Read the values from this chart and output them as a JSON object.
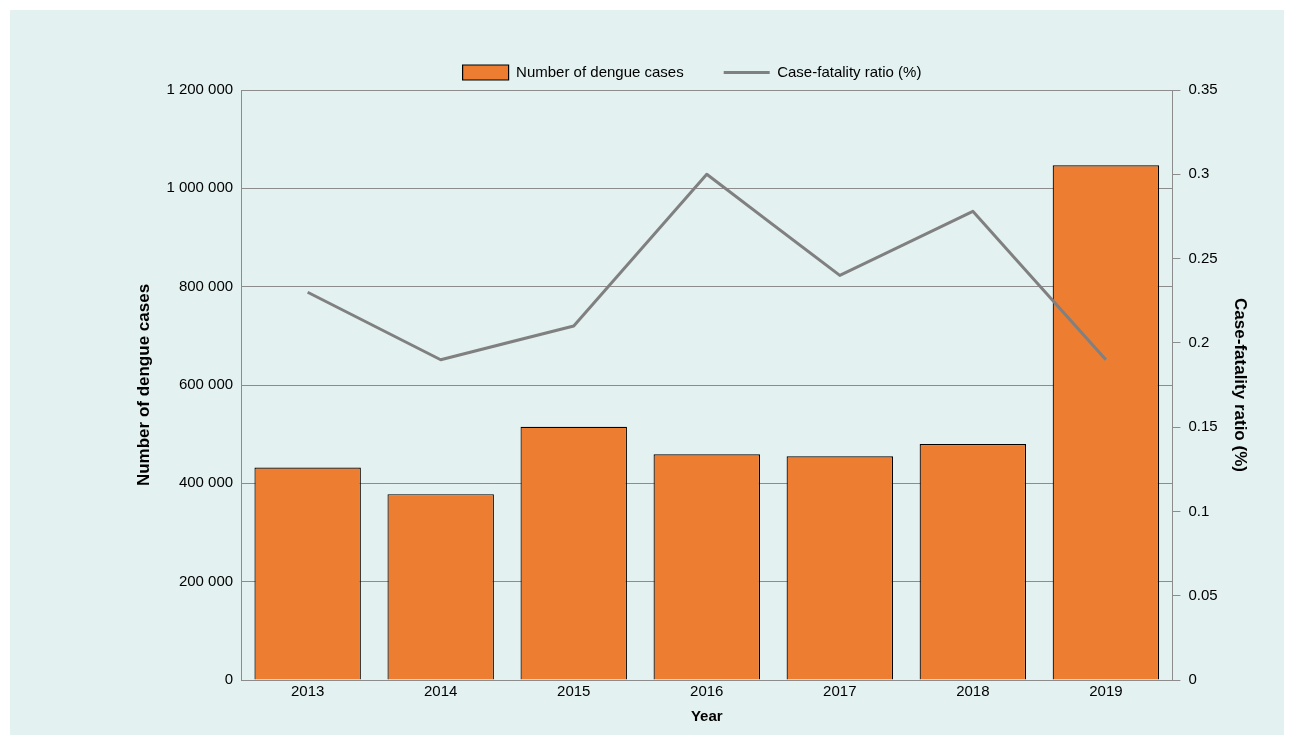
{
  "chart_data": {
    "type": "bar",
    "xlabel": "Year",
    "ylabel": "Number of dengue cases",
    "y2label": "Case-fatality ratio (%)",
    "categories": [
      "2013",
      "2014",
      "2015",
      "2016",
      "2017",
      "2018",
      "2019"
    ],
    "series": [
      {
        "name": "Number of dengue cases",
        "color": "#ed7d31",
        "values": [
          432000,
          378000,
          515000,
          459000,
          455000,
          480000,
          1047000
        ]
      },
      {
        "name": "Case-fatality ratio (%)",
        "type": "line",
        "axis": "y2",
        "color": "#808080",
        "marker": "none",
        "values": [
          0.23,
          0.19,
          0.21,
          0.3,
          0.24,
          0.278,
          0.19
        ]
      }
    ],
    "ylim": [
      0,
      1200000
    ],
    "yticks": [
      {
        "value": 0,
        "label": "0"
      },
      {
        "value": 200000,
        "label": "200 000"
      },
      {
        "value": 400000,
        "label": "400 000"
      },
      {
        "value": 600000,
        "label": "600 000"
      },
      {
        "value": 800000,
        "label": "800 000"
      },
      {
        "value": 1000000,
        "label": "1 000 000"
      },
      {
        "value": 1200000,
        "label": "1 200 000"
      }
    ],
    "y2lim": [
      0,
      0.35
    ],
    "y2ticks": [
      0,
      0.05,
      0.1,
      0.15,
      0.2,
      0.25,
      0.3,
      0.35
    ],
    "grid": "y",
    "legend": "top"
  }
}
